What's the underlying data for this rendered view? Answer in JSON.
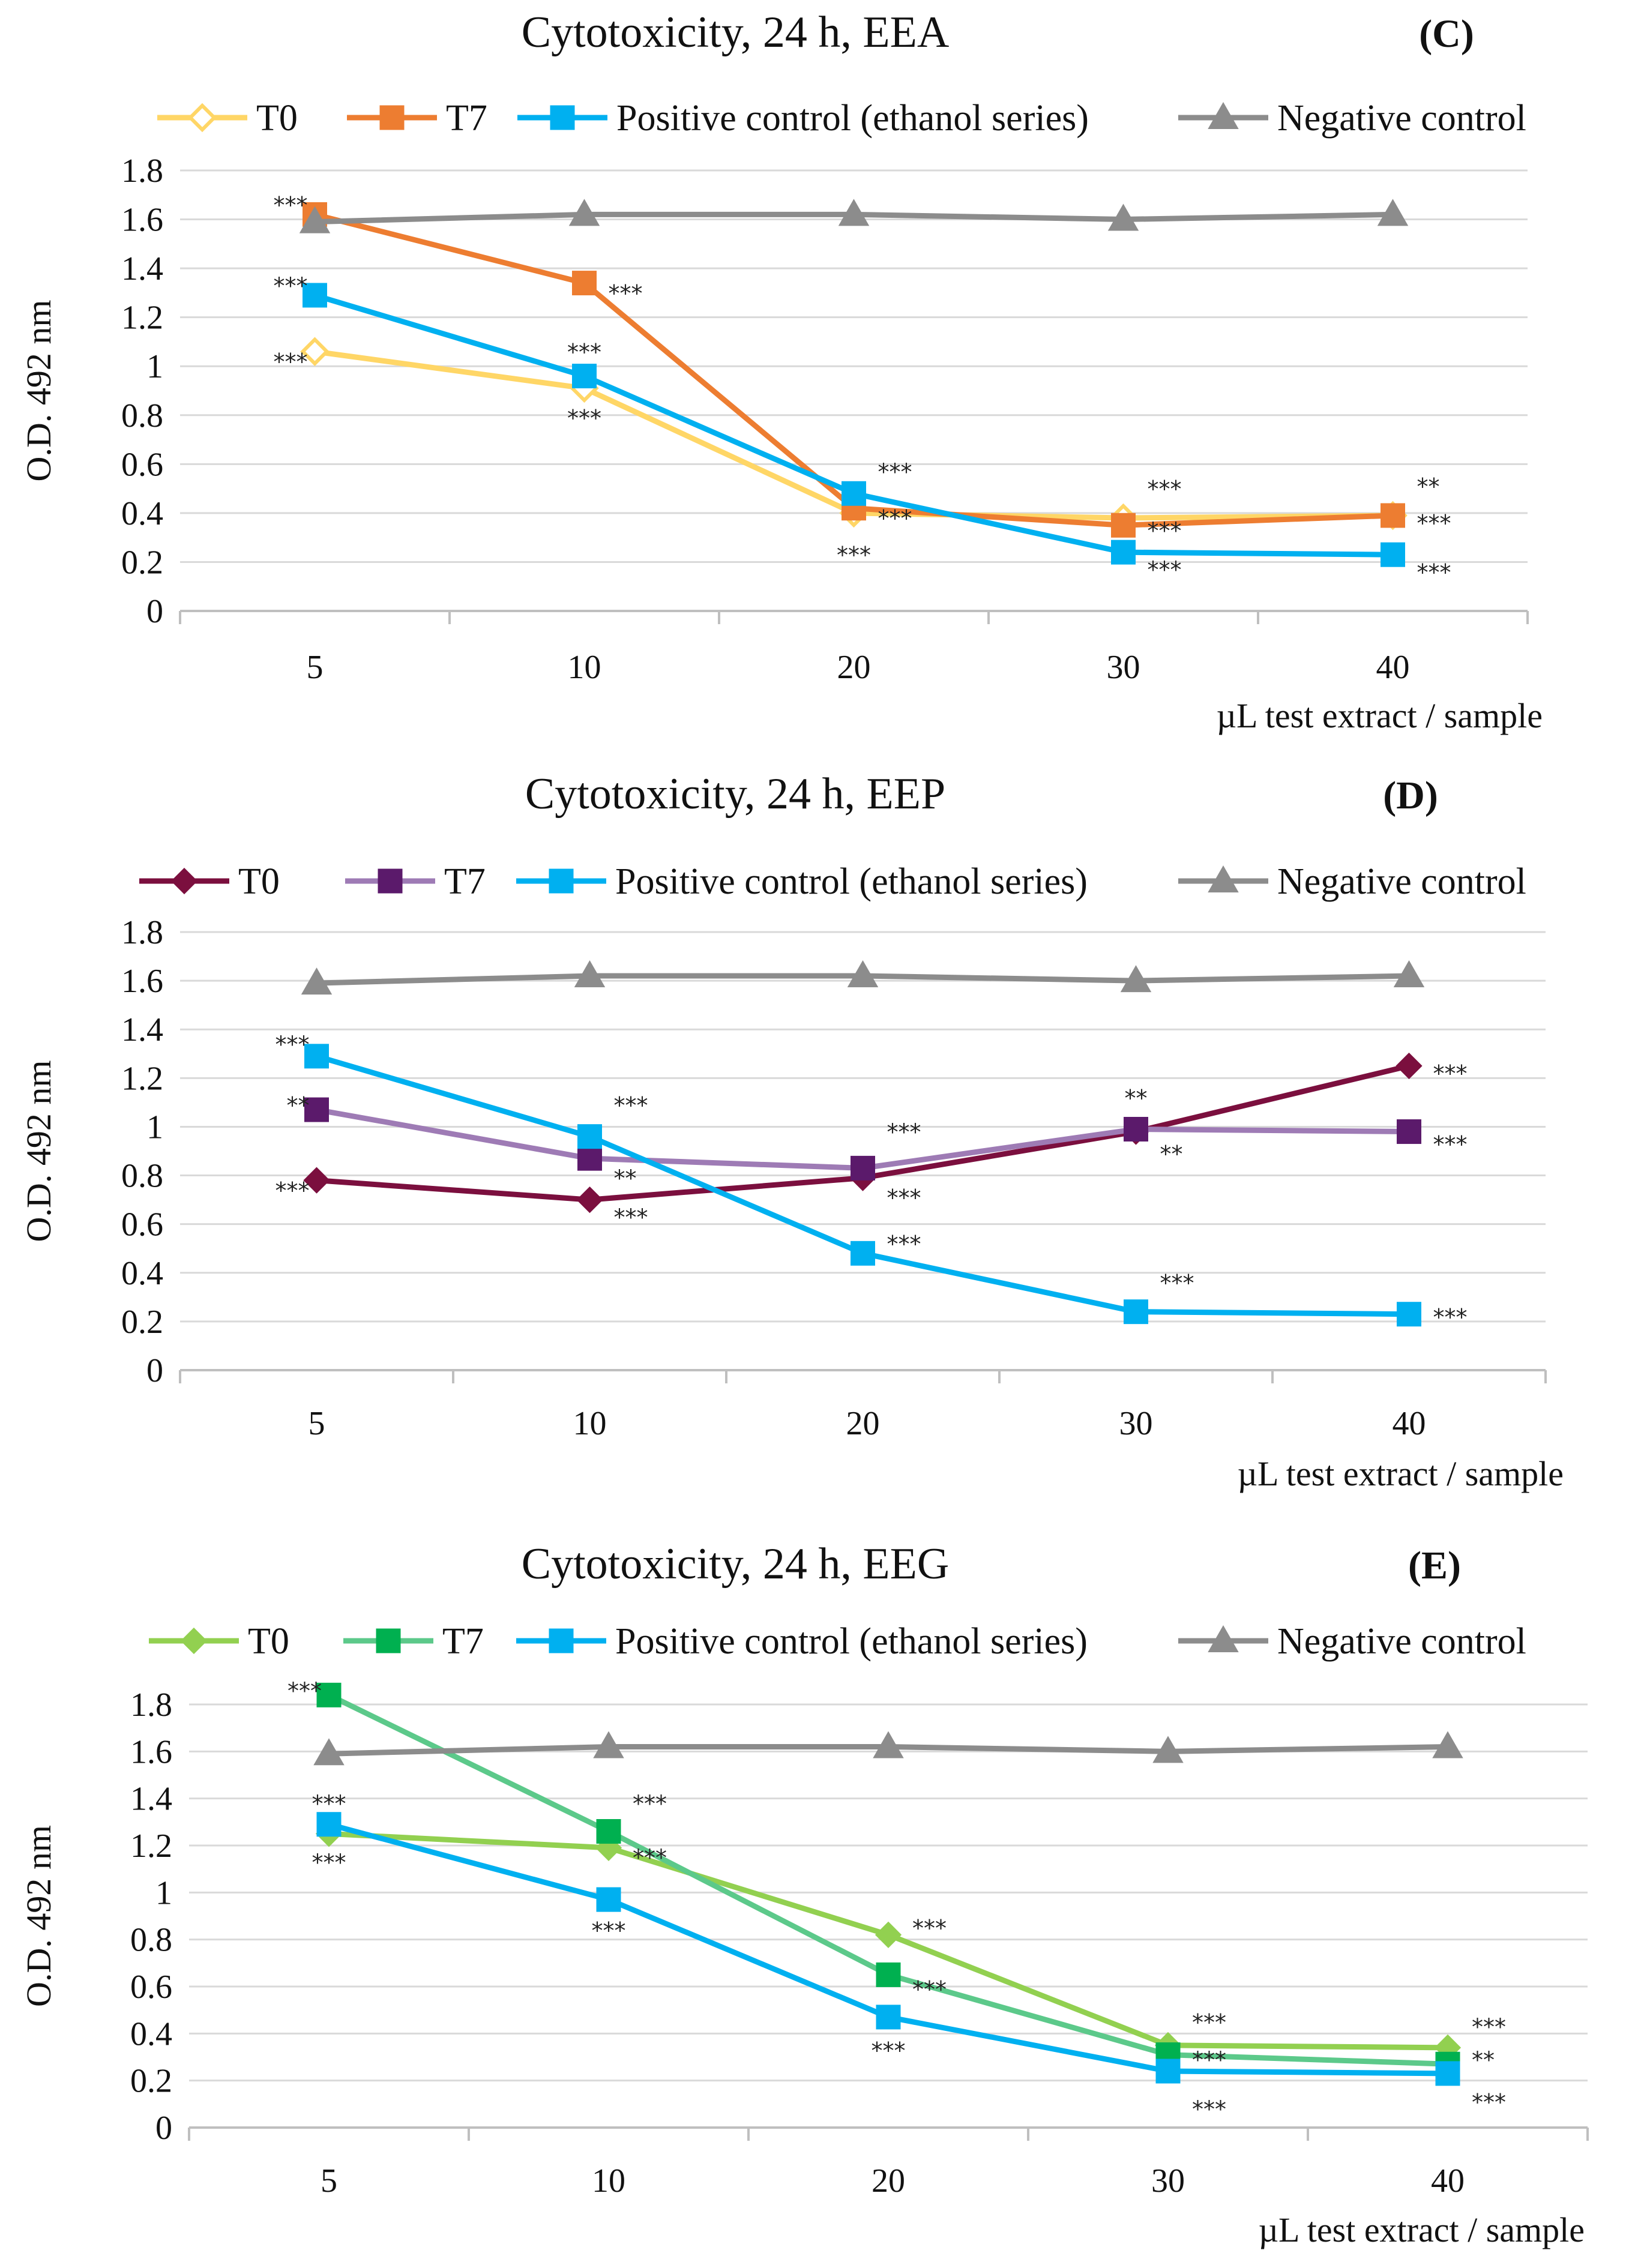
{
  "chart_data": [
    {
      "type": "line",
      "title": "Cytotoxicity, 24 h, EEA",
      "panel_label": "(C)",
      "xlabel": "µL test extract / sample",
      "ylabel": "O.D. 492 nm",
      "categories": [
        "5",
        "10",
        "20",
        "30",
        "40"
      ],
      "yticks": [
        "0",
        "0.2",
        "0.4",
        "0.6",
        "0.8",
        "1",
        "1.2",
        "1.4",
        "1.6",
        "1.8"
      ],
      "ylim": [
        0,
        1.8
      ],
      "grid": true,
      "legend_position": "top",
      "series": [
        {
          "name": "T0",
          "color": "#FFD666",
          "marker": "diamond-open",
          "values": [
            1.06,
            0.91,
            0.4,
            0.38,
            0.39
          ]
        },
        {
          "name": "T7",
          "color": "#ED7D31",
          "marker": "square",
          "values": [
            1.62,
            1.34,
            0.42,
            0.35,
            0.39
          ]
        },
        {
          "name": "Positive control (ethanol series)",
          "color": "#00B0F0",
          "marker": "square",
          "values": [
            1.29,
            0.96,
            0.48,
            0.24,
            0.23
          ]
        },
        {
          "name": "Negative control",
          "color": "#8C8C8C",
          "marker": "triangle",
          "values": [
            1.59,
            1.62,
            1.62,
            1.6,
            1.62
          ]
        }
      ],
      "annotations": [
        {
          "text": "***",
          "x": 0,
          "y": 1.66,
          "side": "left"
        },
        {
          "text": "***",
          "x": 0,
          "y": 1.33,
          "side": "left"
        },
        {
          "text": "***",
          "x": 0,
          "y": 1.02,
          "side": "left"
        },
        {
          "text": "***",
          "x": 1,
          "y": 1.3,
          "side": "right"
        },
        {
          "text": "***",
          "x": 1,
          "y": 1.06,
          "side": "center"
        },
        {
          "text": "***",
          "x": 1,
          "y": 0.79,
          "side": "center"
        },
        {
          "text": "***",
          "x": 2,
          "y": 0.57,
          "side": "right"
        },
        {
          "text": "***",
          "x": 2,
          "y": 0.38,
          "side": "right"
        },
        {
          "text": "***",
          "x": 2,
          "y": 0.23,
          "side": "center"
        },
        {
          "text": "***",
          "x": 3,
          "y": 0.5,
          "side": "right"
        },
        {
          "text": "***",
          "x": 3,
          "y": 0.33,
          "side": "right"
        },
        {
          "text": "***",
          "x": 3,
          "y": 0.17,
          "side": "right"
        },
        {
          "text": "**",
          "x": 4,
          "y": 0.51,
          "side": "right"
        },
        {
          "text": "***",
          "x": 4,
          "y": 0.36,
          "side": "right"
        },
        {
          "text": "***",
          "x": 4,
          "y": 0.16,
          "side": "right"
        }
      ]
    },
    {
      "type": "line",
      "title": "Cytotoxicity, 24 h, EEP",
      "panel_label": "(D)",
      "xlabel": "µL test extract / sample",
      "ylabel": "O.D. 492 nm",
      "categories": [
        "5",
        "10",
        "20",
        "30",
        "40"
      ],
      "yticks": [
        "0",
        "0.2",
        "0.4",
        "0.6",
        "0.8",
        "1",
        "1.2",
        "1.4",
        "1.6",
        "1.8"
      ],
      "ylim": [
        0,
        1.8
      ],
      "grid": true,
      "legend_position": "top",
      "series": [
        {
          "name": "T0",
          "color": "#7B0F3E",
          "marker": "diamond",
          "values": [
            0.78,
            0.7,
            0.79,
            0.98,
            1.25
          ]
        },
        {
          "name": "T7",
          "color": "#9E7BB5",
          "marker": "square",
          "markerColor": "#5B1A6B",
          "values": [
            1.07,
            0.87,
            0.83,
            0.99,
            0.98
          ]
        },
        {
          "name": "Positive control (ethanol series)",
          "color": "#00B0F0",
          "marker": "square",
          "values": [
            1.29,
            0.96,
            0.48,
            0.24,
            0.23
          ]
        },
        {
          "name": "Negative control",
          "color": "#8C8C8C",
          "marker": "triangle",
          "values": [
            1.59,
            1.62,
            1.62,
            1.6,
            1.62
          ]
        }
      ],
      "annotations": [
        {
          "text": "***",
          "x": 0,
          "y": 1.34,
          "side": "left"
        },
        {
          "text": "**",
          "x": 0,
          "y": 1.09,
          "side": "left"
        },
        {
          "text": "***",
          "x": 0,
          "y": 0.74,
          "side": "left"
        },
        {
          "text": "***",
          "x": 1,
          "y": 1.09,
          "side": "right"
        },
        {
          "text": "**",
          "x": 1,
          "y": 0.79,
          "side": "right"
        },
        {
          "text": "***",
          "x": 1,
          "y": 0.63,
          "side": "right"
        },
        {
          "text": "***",
          "x": 2,
          "y": 0.98,
          "side": "right"
        },
        {
          "text": "***",
          "x": 2,
          "y": 0.71,
          "side": "right"
        },
        {
          "text": "***",
          "x": 2,
          "y": 0.52,
          "side": "right"
        },
        {
          "text": "**",
          "x": 3,
          "y": 1.12,
          "side": "center"
        },
        {
          "text": "**",
          "x": 3,
          "y": 0.89,
          "side": "right"
        },
        {
          "text": "***",
          "x": 3,
          "y": 0.36,
          "side": "right"
        },
        {
          "text": "***",
          "x": 4,
          "y": 1.22,
          "side": "right"
        },
        {
          "text": "***",
          "x": 4,
          "y": 0.93,
          "side": "right"
        },
        {
          "text": "***",
          "x": 4,
          "y": 0.22,
          "side": "right"
        }
      ]
    },
    {
      "type": "line",
      "title": "Cytotoxicity, 24 h, EEG",
      "panel_label": "(E)",
      "xlabel": "µL test extract / sample",
      "ylabel": "O.D. 492 nm",
      "categories": [
        "5",
        "10",
        "20",
        "30",
        "40"
      ],
      "yticks": [
        "0",
        "0.2",
        "0.4",
        "0.6",
        "0.8",
        "1",
        "1.2",
        "1.4",
        "1.6",
        "1.8"
      ],
      "ylim": [
        0,
        1.8
      ],
      "grid": true,
      "legend_position": "top",
      "series": [
        {
          "name": "T0",
          "color": "#92D050",
          "marker": "diamond",
          "values": [
            1.25,
            1.19,
            0.82,
            0.35,
            0.34
          ]
        },
        {
          "name": "T7",
          "color": "#5CC98A",
          "marker": "square",
          "markerColor": "#00B050",
          "values": [
            1.84,
            1.26,
            0.65,
            0.31,
            0.27
          ]
        },
        {
          "name": "Positive control (ethanol series)",
          "color": "#00B0F0",
          "marker": "square",
          "values": [
            1.29,
            0.97,
            0.47,
            0.24,
            0.23
          ]
        },
        {
          "name": "Negative control",
          "color": "#8C8C8C",
          "marker": "triangle",
          "values": [
            1.59,
            1.62,
            1.62,
            1.6,
            1.62
          ]
        }
      ],
      "annotations": [
        {
          "text": "***",
          "x": 0,
          "y": 1.86,
          "side": "left"
        },
        {
          "text": "***",
          "x": 0,
          "y": 1.38,
          "side": "center"
        },
        {
          "text": "***",
          "x": 0,
          "y": 1.13,
          "side": "center"
        },
        {
          "text": "***",
          "x": 1,
          "y": 1.38,
          "side": "right"
        },
        {
          "text": "***",
          "x": 1,
          "y": 1.15,
          "side": "right"
        },
        {
          "text": "***",
          "x": 1,
          "y": 0.84,
          "side": "center"
        },
        {
          "text": "***",
          "x": 2,
          "y": 0.85,
          "side": "right"
        },
        {
          "text": "***",
          "x": 2,
          "y": 0.59,
          "side": "right"
        },
        {
          "text": "***",
          "x": 2,
          "y": 0.33,
          "side": "center"
        },
        {
          "text": "***",
          "x": 3,
          "y": 0.45,
          "side": "right"
        },
        {
          "text": "***",
          "x": 3,
          "y": 0.29,
          "side": "right"
        },
        {
          "text": "***",
          "x": 3,
          "y": 0.08,
          "side": "right"
        },
        {
          "text": "***",
          "x": 4,
          "y": 0.43,
          "side": "right"
        },
        {
          "text": "**",
          "x": 4,
          "y": 0.29,
          "side": "right"
        },
        {
          "text": "***",
          "x": 4,
          "y": 0.11,
          "side": "right"
        }
      ]
    }
  ]
}
